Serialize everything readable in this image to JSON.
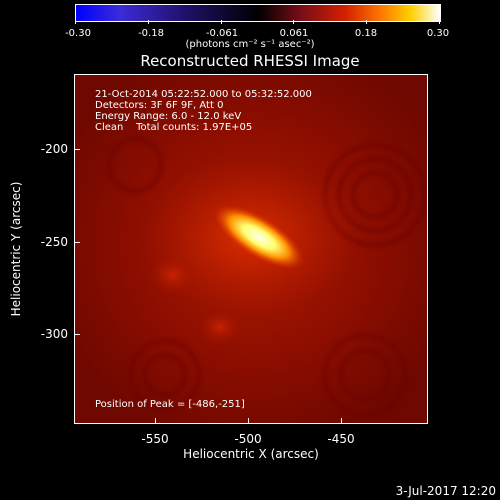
{
  "colorbar": {
    "ticks": [
      "-0.30",
      "-0.18",
      "-0.061",
      "0.061",
      "0.18",
      "0.30"
    ],
    "unit": "(photons cm⁻² s⁻¹ asec⁻²)"
  },
  "title": "Reconstructed RHESSI Image",
  "info": {
    "time": "21-Oct-2014 05:22:52.000 to 05:32:52.000",
    "detectors": "Detectors: 3F 6F 9F, Att 0",
    "energy": "Energy Range: 6.0 - 12.0 keV",
    "clean": "Clean    Total counts: 1.97E+05"
  },
  "peak": "Position of Peak = [-486,-251]",
  "axes": {
    "xlabel": "Heliocentric X (arcsec)",
    "ylabel": "Heliocentric Y (arcsec)",
    "xticks": [
      "-550",
      "-500",
      "-450"
    ],
    "yticks": [
      "-200",
      "-250",
      "-300"
    ]
  },
  "footer": "3-Jul-2017 12:20",
  "colors": {
    "background": "#000000",
    "image_base": "#8a0d00",
    "source_core": "#ffffee"
  }
}
